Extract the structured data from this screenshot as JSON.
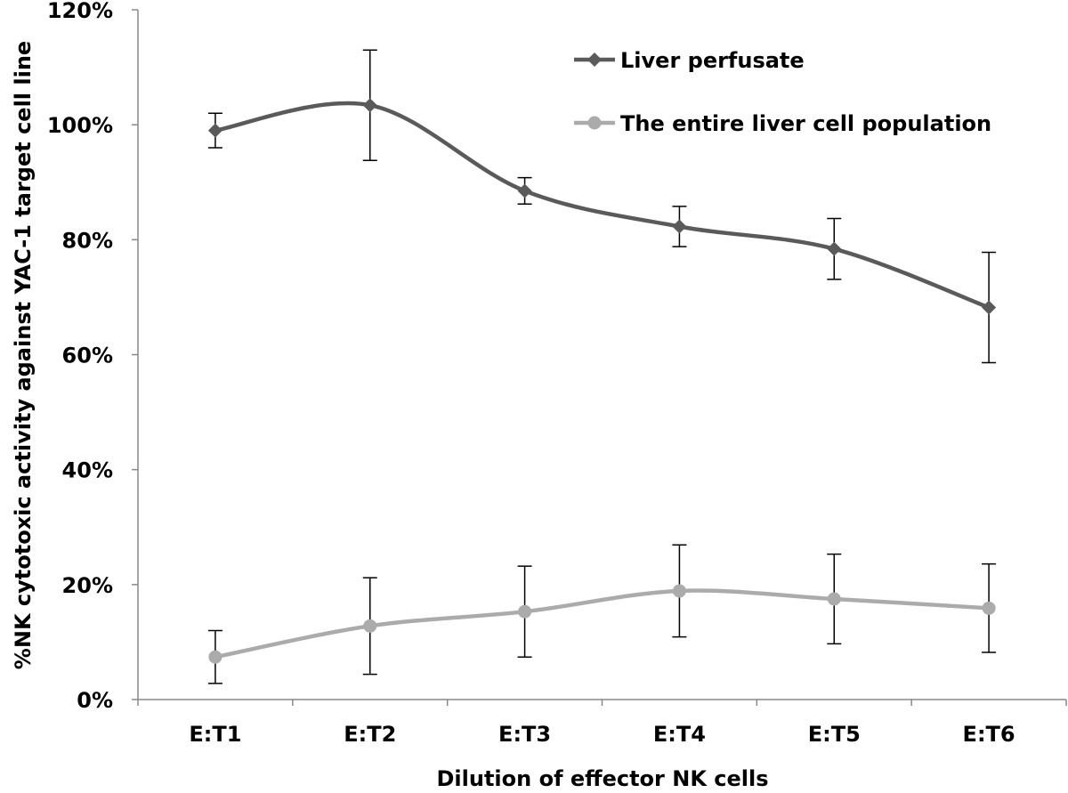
{
  "chart_data": {
    "type": "line",
    "title": "",
    "xlabel": "Dilution of effector NK cells",
    "ylabel": "%NK cytotoxic activity against YAC-1 target cell line",
    "categories": [
      "E:T1",
      "E:T2",
      "E:T3",
      "E:T4",
      "E:T5",
      "E:T6"
    ],
    "ylim": [
      0,
      120
    ],
    "yticks": [
      0,
      20,
      40,
      60,
      80,
      100,
      120
    ],
    "ytick_labels": [
      "0%",
      "20%",
      "40%",
      "60%",
      "80%",
      "100%",
      "120%"
    ],
    "grid": false,
    "legend_position": "top-right",
    "smooth": true,
    "series": [
      {
        "name": "Liver perfusate",
        "marker": "diamond",
        "color": "#5a5a5a",
        "values": [
          99.0,
          103.4,
          88.5,
          82.3,
          78.4,
          68.2
        ],
        "errors": [
          3.0,
          9.6,
          2.3,
          3.5,
          5.3,
          9.6
        ]
      },
      {
        "name": "The entire liver cell population",
        "marker": "circle",
        "color": "#ababab",
        "values": [
          7.4,
          12.8,
          15.3,
          18.9,
          17.5,
          15.9
        ],
        "errors": [
          4.6,
          8.4,
          7.9,
          8.0,
          7.8,
          7.7
        ]
      }
    ]
  }
}
